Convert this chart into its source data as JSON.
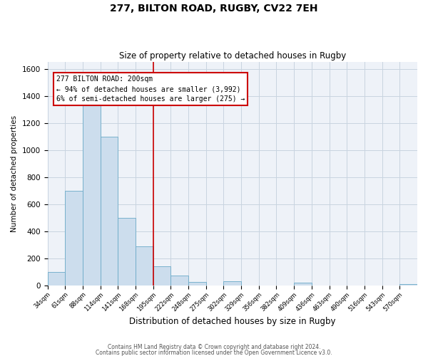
{
  "title": "277, BILTON ROAD, RUGBY, CV22 7EH",
  "subtitle": "Size of property relative to detached houses in Rugby",
  "xlabel": "Distribution of detached houses by size in Rugby",
  "ylabel": "Number of detached properties",
  "bar_color": "#ccdded",
  "bar_edge_color": "#6aaac8",
  "grid_color": "#c8d4e0",
  "bg_color": "#eef2f8",
  "bin_labels": [
    "34sqm",
    "61sqm",
    "88sqm",
    "114sqm",
    "141sqm",
    "168sqm",
    "195sqm",
    "222sqm",
    "248sqm",
    "275sqm",
    "302sqm",
    "329sqm",
    "356sqm",
    "382sqm",
    "409sqm",
    "436sqm",
    "463sqm",
    "490sqm",
    "516sqm",
    "543sqm",
    "570sqm"
  ],
  "bar_heights": [
    100,
    700,
    1330,
    1100,
    500,
    290,
    140,
    75,
    25,
    0,
    30,
    0,
    0,
    0,
    20,
    0,
    0,
    0,
    0,
    0,
    10
  ],
  "vline_x": 6,
  "vline_color": "#cc0000",
  "ylim": [
    0,
    1650
  ],
  "yticks": [
    0,
    200,
    400,
    600,
    800,
    1000,
    1200,
    1400,
    1600
  ],
  "annotation_title": "277 BILTON ROAD: 200sqm",
  "annotation_line1": "← 94% of detached houses are smaller (3,992)",
  "annotation_line2": "6% of semi-detached houses are larger (275) →",
  "annotation_box_edge": "#cc0000",
  "footer1": "Contains HM Land Registry data © Crown copyright and database right 2024.",
  "footer2": "Contains public sector information licensed under the Open Government Licence v3.0."
}
